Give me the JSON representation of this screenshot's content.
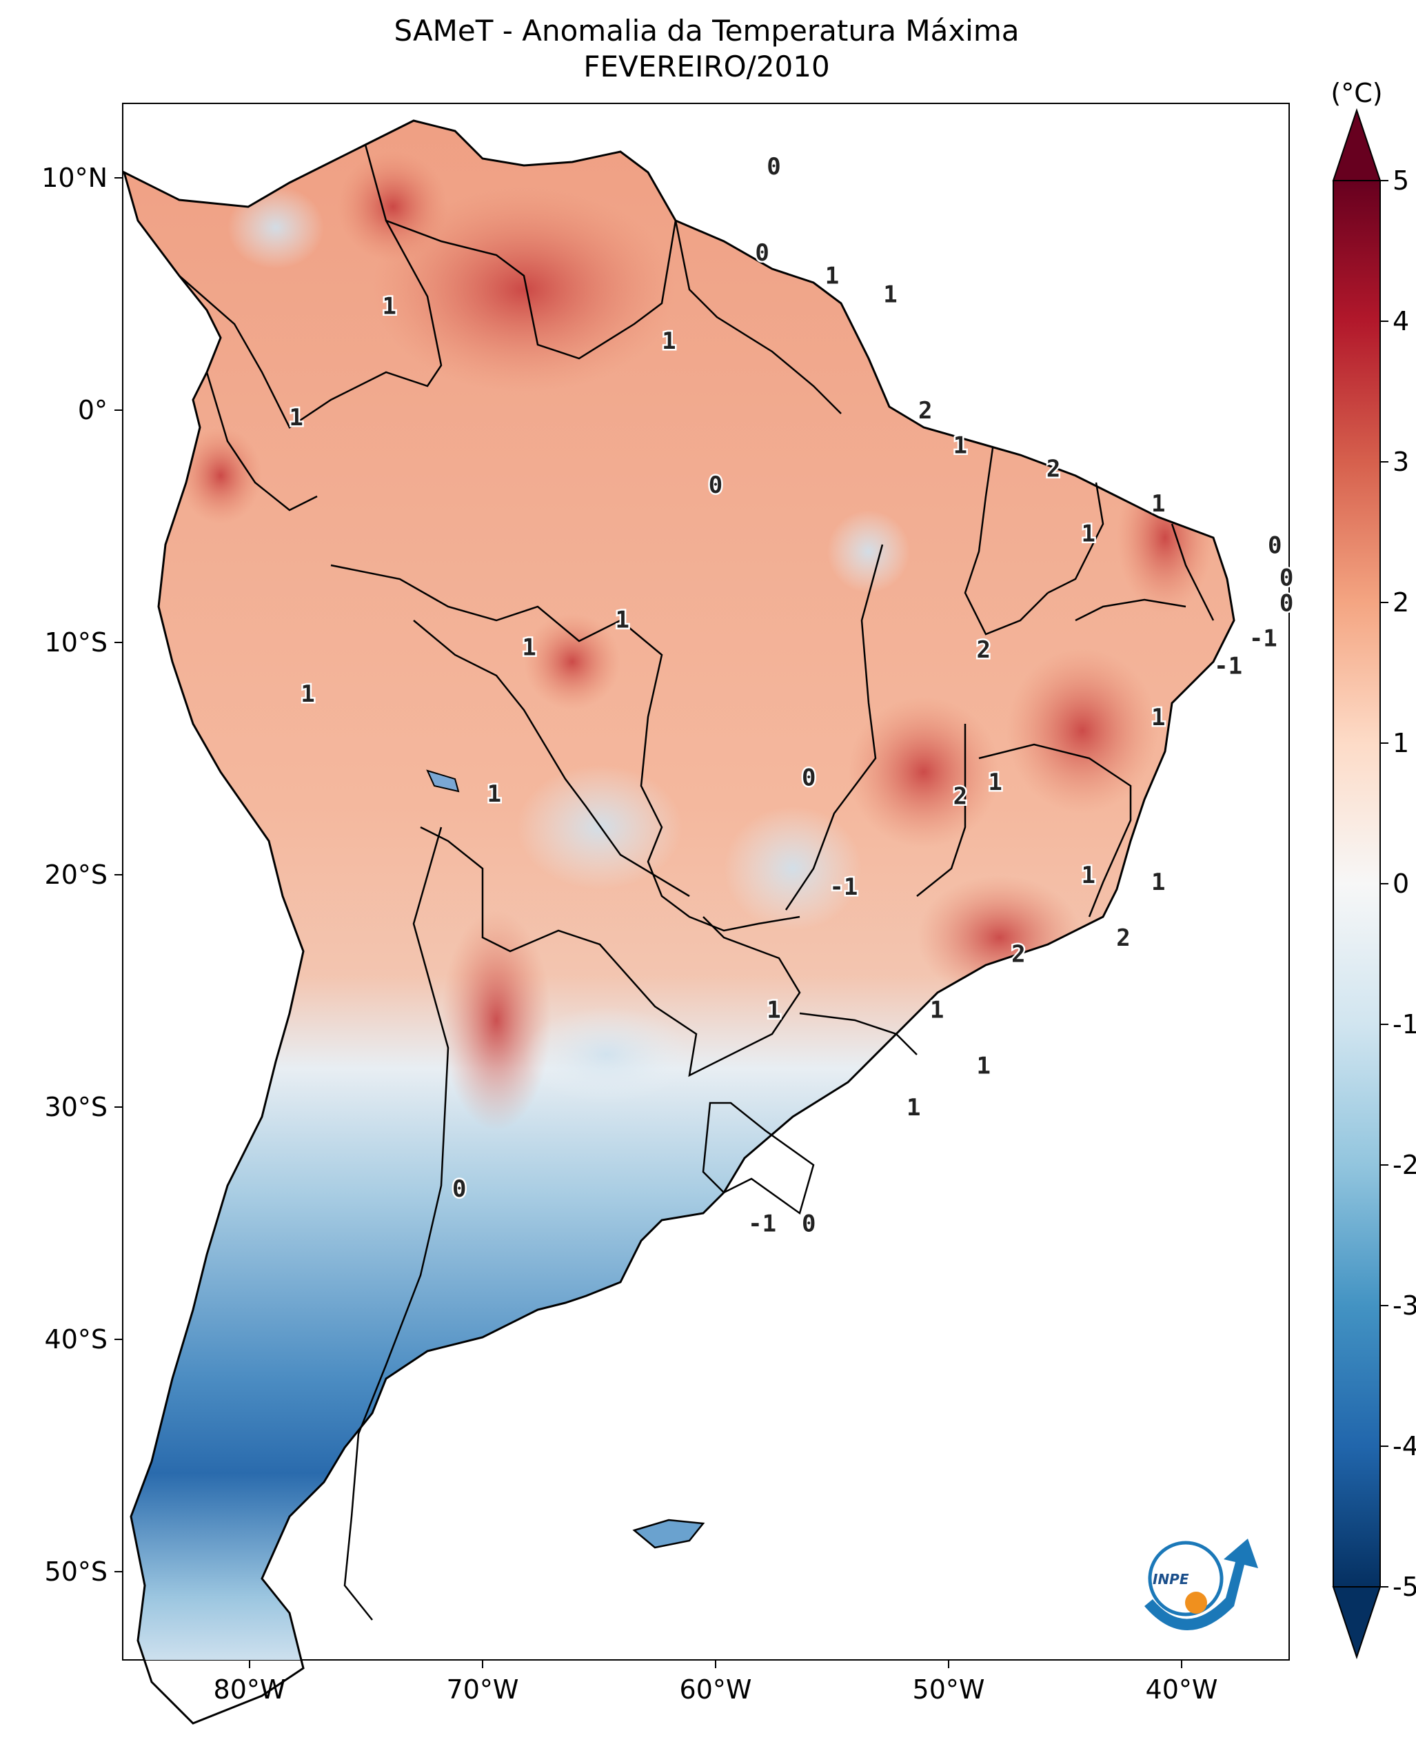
{
  "title": "SAMeT - Anomalia da Temperatura Máxima",
  "subtitle": "FEVEREIRO/2010",
  "colorbar": {
    "unit_label": "(°C)",
    "min": -5,
    "max": 5,
    "ticks": [
      "5",
      "4",
      "3",
      "2",
      "1",
      "0",
      "-1",
      "-2",
      "-3",
      "-4",
      "-5"
    ],
    "colors": [
      "#053061",
      "#2166ac",
      "#4393c3",
      "#92c5de",
      "#d1e5f0",
      "#f7f7f7",
      "#fddbc7",
      "#f4a582",
      "#d6604d",
      "#b2182b",
      "#67001f"
    ]
  },
  "axes": {
    "lon_ticks": [
      "80°W",
      "70°W",
      "60°W",
      "50°W",
      "40°W"
    ],
    "lat_ticks": [
      "10°N",
      "0°",
      "10°S",
      "20°S",
      "30°S",
      "40°S",
      "50°S"
    ]
  },
  "contour_labels": [
    {
      "text": "0",
      "lon": -57.5,
      "lat": 10.5
    },
    {
      "text": "0",
      "lon": -58.0,
      "lat": 6.8
    },
    {
      "text": "1",
      "lon": -55.0,
      "lat": 5.8
    },
    {
      "text": "1",
      "lon": -52.5,
      "lat": 5.0
    },
    {
      "text": "1",
      "lon": -74.0,
      "lat": 4.5
    },
    {
      "text": "1",
      "lon": -62.0,
      "lat": 3.0
    },
    {
      "text": "1",
      "lon": -78.0,
      "lat": -0.3
    },
    {
      "text": "2",
      "lon": -51.0,
      "lat": 0.0
    },
    {
      "text": "1",
      "lon": -49.5,
      "lat": -1.5
    },
    {
      "text": "0",
      "lon": -60.0,
      "lat": -3.2
    },
    {
      "text": "2",
      "lon": -45.5,
      "lat": -2.5
    },
    {
      "text": "1",
      "lon": -41.0,
      "lat": -4.0
    },
    {
      "text": "1",
      "lon": -44.0,
      "lat": -5.3
    },
    {
      "text": "0",
      "lon": -36.0,
      "lat": -5.8
    },
    {
      "text": "0",
      "lon": -35.5,
      "lat": -7.2
    },
    {
      "text": "0",
      "lon": -35.5,
      "lat": -8.3
    },
    {
      "text": "-1",
      "lon": -36.5,
      "lat": -9.8
    },
    {
      "text": "-1",
      "lon": -38.0,
      "lat": -11.0
    },
    {
      "text": "1",
      "lon": -64.0,
      "lat": -9.0
    },
    {
      "text": "1",
      "lon": -68.0,
      "lat": -10.2
    },
    {
      "text": "2",
      "lon": -48.5,
      "lat": -10.3
    },
    {
      "text": "1",
      "lon": -77.5,
      "lat": -12.2
    },
    {
      "text": "1",
      "lon": -41.0,
      "lat": -13.2
    },
    {
      "text": "0",
      "lon": -56.0,
      "lat": -15.8
    },
    {
      "text": "1",
      "lon": -48.0,
      "lat": -16.0
    },
    {
      "text": "2",
      "lon": -49.5,
      "lat": -16.6
    },
    {
      "text": "1",
      "lon": -69.5,
      "lat": -16.5
    },
    {
      "text": "1",
      "lon": -44.0,
      "lat": -20.0
    },
    {
      "text": "-1",
      "lon": -54.5,
      "lat": -20.5
    },
    {
      "text": "1",
      "lon": -41.0,
      "lat": -20.3
    },
    {
      "text": "2",
      "lon": -42.5,
      "lat": -22.7
    },
    {
      "text": "2",
      "lon": -47.0,
      "lat": -23.4
    },
    {
      "text": "1",
      "lon": -57.5,
      "lat": -25.8
    },
    {
      "text": "1",
      "lon": -50.5,
      "lat": -25.8
    },
    {
      "text": "1",
      "lon": -48.5,
      "lat": -28.2
    },
    {
      "text": "1",
      "lon": -51.5,
      "lat": -30.0
    },
    {
      "text": "0",
      "lon": -71.0,
      "lat": -33.5
    },
    {
      "text": "-1",
      "lon": -58.0,
      "lat": -35.0
    },
    {
      "text": "0",
      "lon": -56.0,
      "lat": -35.0
    }
  ],
  "logo": {
    "text": "INPE"
  }
}
